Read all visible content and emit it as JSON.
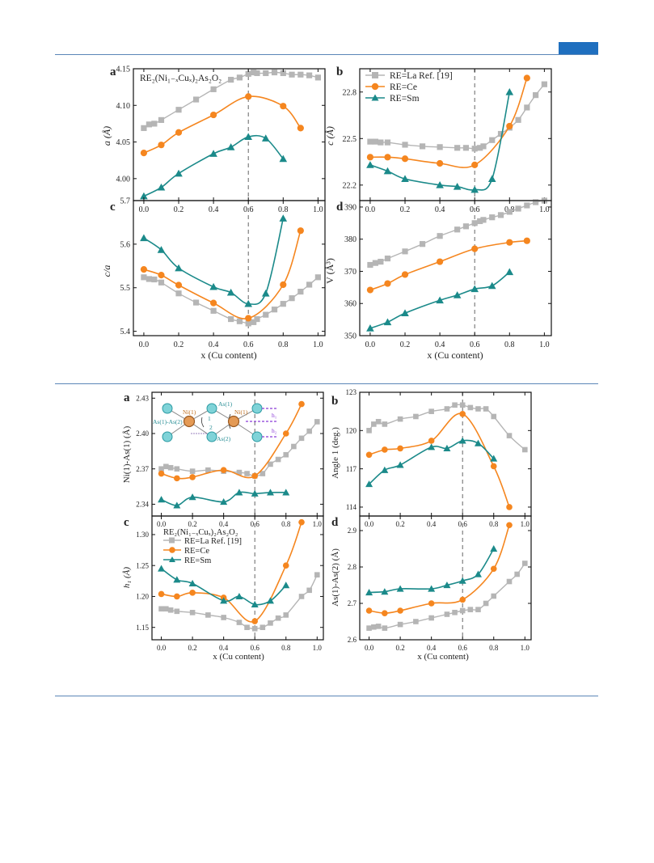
{
  "colors": {
    "la": "#b5b5b5",
    "ce": "#f5861f",
    "sm": "#1b8a8a",
    "rule": "#5b86b8",
    "tab": "#1f6fbf",
    "dash": "#666666"
  },
  "figure1": {
    "xlabel": "x (Cu content)",
    "panels": {
      "a": {
        "letter": "a",
        "title": "RE₂(Ni₁₋ₓCuₓ)₂As₂O₂",
        "ylabel": "a (Å)"
      },
      "b": {
        "letter": "b",
        "ylabel": "c (Å)"
      },
      "c": {
        "letter": "c",
        "ylabel": "c/a"
      },
      "d": {
        "letter": "d",
        "ylabel": "V (Å³)"
      }
    },
    "legend": [
      "RE=La  Ref. [19]",
      "RE=Ce",
      "RE=Sm"
    ]
  },
  "figure2": {
    "xlabel": "x (Cu content)",
    "panels": {
      "a": {
        "letter": "a",
        "ylabel": "Ni(1)-As(1) (Å)"
      },
      "b": {
        "letter": "b",
        "ylabel": "Angle 1 (deg.)"
      },
      "c": {
        "letter": "c",
        "title": "RE₂(Ni₁₋ₓCuₓ)₂As₂O₂",
        "ylabel": "h₁ (Å)"
      },
      "d": {
        "letter": "d",
        "ylabel": "As(1)-As(2) (Å)"
      }
    },
    "legend": [
      "RE=La  Ref. [19]",
      "RE=Ce",
      "RE=Sm"
    ],
    "inset": {
      "ni1_left": "Ni(1)",
      "as1_top": "As(1)",
      "as1as2": "As(1)-As(2)",
      "label1": "1",
      "label2": "2",
      "ni1_right": "Ni(1)",
      "as2": "As(2)",
      "h1": "h₁",
      "h2": "h₂"
    }
  },
  "chart_data": [
    {
      "id": "fig1a",
      "type": "scatter",
      "xlabel": "x (Cu content)",
      "ylabel": "a (Å)",
      "xlim": [
        -0.06,
        1.04
      ],
      "ylim": [
        3.97,
        4.15
      ],
      "xticks": [
        "0.0",
        "0.2",
        "0.4",
        "0.6",
        "0.8",
        "1.0"
      ],
      "yticks": [
        "4.00",
        "4.05",
        "4.10",
        "4.15"
      ],
      "vline": 0.6,
      "series": [
        {
          "name": "RE=La  Ref. [19]",
          "x": [
            0,
            0.03,
            0.06,
            0.1,
            0.2,
            0.3,
            0.4,
            0.5,
            0.55,
            0.6,
            0.63,
            0.65,
            0.7,
            0.75,
            0.8,
            0.85,
            0.9,
            0.95,
            1.0
          ],
          "y": [
            4.069,
            4.074,
            4.075,
            4.08,
            4.094,
            4.108,
            4.122,
            4.135,
            4.138,
            4.143,
            4.145,
            4.144,
            4.144,
            4.145,
            4.144,
            4.142,
            4.142,
            4.141,
            4.138
          ]
        },
        {
          "name": "RE=Ce",
          "x": [
            0,
            0.1,
            0.2,
            0.4,
            0.6,
            0.8,
            0.9
          ],
          "y": [
            4.035,
            4.046,
            4.063,
            4.087,
            4.112,
            4.099,
            4.069
          ]
        },
        {
          "name": "RE=Sm",
          "x": [
            0,
            0.1,
            0.2,
            0.4,
            0.5,
            0.6,
            0.7,
            0.8
          ],
          "y": [
            3.976,
            3.988,
            4.007,
            4.034,
            4.043,
            4.057,
            4.055,
            4.027
          ]
        }
      ]
    },
    {
      "id": "fig1b",
      "type": "scatter",
      "xlabel": "x (Cu content)",
      "ylabel": "c (Å)",
      "xlim": [
        -0.06,
        1.04
      ],
      "ylim": [
        22.1,
        22.95
      ],
      "xticks": [
        "0.0",
        "0.2",
        "0.4",
        "0.6",
        "0.8",
        "1.0"
      ],
      "yticks": [
        "22.2",
        "22.5",
        "22.8"
      ],
      "vline": 0.6,
      "series": [
        {
          "name": "RE=La  Ref. [19]",
          "x": [
            0,
            0.03,
            0.06,
            0.1,
            0.2,
            0.3,
            0.4,
            0.5,
            0.55,
            0.6,
            0.63,
            0.65,
            0.7,
            0.75,
            0.8,
            0.85,
            0.9,
            0.95,
            1.0
          ],
          "y": [
            22.48,
            22.48,
            22.475,
            22.475,
            22.46,
            22.45,
            22.445,
            22.44,
            22.44,
            22.435,
            22.44,
            22.45,
            22.49,
            22.53,
            22.57,
            22.62,
            22.7,
            22.78,
            22.85
          ]
        },
        {
          "name": "RE=Ce",
          "x": [
            0,
            0.1,
            0.2,
            0.4,
            0.6,
            0.8,
            0.9
          ],
          "y": [
            22.38,
            22.38,
            22.37,
            22.34,
            22.33,
            22.58,
            22.89
          ]
        },
        {
          "name": "RE=Sm",
          "x": [
            0,
            0.1,
            0.2,
            0.4,
            0.5,
            0.6,
            0.7,
            0.8
          ],
          "y": [
            22.33,
            22.29,
            22.24,
            22.2,
            22.19,
            22.17,
            22.24,
            22.8
          ]
        }
      ]
    },
    {
      "id": "fig1c",
      "type": "scatter",
      "xlabel": "x (Cu content)",
      "ylabel": "c/a",
      "xlim": [
        -0.06,
        1.04
      ],
      "ylim": [
        5.39,
        5.7
      ],
      "xticks": [
        "0.0",
        "0.2",
        "0.4",
        "0.6",
        "0.8",
        "1.0"
      ],
      "yticks": [
        "5.4",
        "5.5",
        "5.6",
        "5.7"
      ],
      "vline": 0.6,
      "series": [
        {
          "name": "RE=La  Ref. [19]",
          "x": [
            0,
            0.03,
            0.06,
            0.1,
            0.2,
            0.3,
            0.4,
            0.5,
            0.55,
            0.6,
            0.63,
            0.65,
            0.7,
            0.75,
            0.8,
            0.85,
            0.9,
            0.95,
            1.0
          ],
          "y": [
            5.524,
            5.52,
            5.519,
            5.512,
            5.487,
            5.466,
            5.447,
            5.428,
            5.423,
            5.418,
            5.421,
            5.428,
            5.438,
            5.45,
            5.463,
            5.476,
            5.491,
            5.507,
            5.524
          ]
        },
        {
          "name": "RE=Ce",
          "x": [
            0,
            0.1,
            0.2,
            0.4,
            0.6,
            0.8,
            0.9
          ],
          "y": [
            5.542,
            5.529,
            5.506,
            5.465,
            5.43,
            5.507,
            5.631
          ]
        },
        {
          "name": "RE=Sm",
          "x": [
            0,
            0.1,
            0.2,
            0.4,
            0.5,
            0.6,
            0.7,
            0.8
          ],
          "y": [
            5.614,
            5.587,
            5.545,
            5.502,
            5.489,
            5.463,
            5.487,
            5.659
          ]
        }
      ]
    },
    {
      "id": "fig1d",
      "type": "scatter",
      "xlabel": "x (Cu content)",
      "ylabel": "V (Å³)",
      "xlim": [
        -0.06,
        1.04
      ],
      "ylim": [
        350,
        392
      ],
      "xticks": [
        "0.0",
        "0.2",
        "0.4",
        "0.6",
        "0.8",
        "1.0"
      ],
      "yticks": [
        "350",
        "360",
        "370",
        "380",
        "390"
      ],
      "vline": 0.6,
      "series": [
        {
          "name": "RE=La  Ref. [19]",
          "x": [
            0,
            0.03,
            0.06,
            0.1,
            0.2,
            0.3,
            0.4,
            0.5,
            0.55,
            0.6,
            0.63,
            0.65,
            0.7,
            0.75,
            0.8,
            0.85,
            0.9,
            0.95,
            1.0
          ],
          "y": [
            372,
            372.6,
            373,
            374,
            376.2,
            378.5,
            381,
            383,
            384,
            385,
            385.6,
            386,
            386.8,
            387.5,
            388.5,
            389.5,
            390.5,
            391.5,
            392
          ]
        },
        {
          "name": "RE=Ce",
          "x": [
            0,
            0.1,
            0.2,
            0.4,
            0.6,
            0.8,
            0.9
          ],
          "y": [
            364.2,
            366.2,
            369,
            373,
            377,
            379,
            379.5
          ]
        },
        {
          "name": "RE=Sm",
          "x": [
            0,
            0.1,
            0.2,
            0.4,
            0.5,
            0.6,
            0.7,
            0.8
          ],
          "y": [
            352.3,
            354.2,
            357,
            361,
            362.6,
            364.5,
            365.5,
            369.8
          ]
        }
      ]
    },
    {
      "id": "fig2a",
      "type": "scatter",
      "xlabel": "x (Cu content)",
      "ylabel": "Ni(1)-As(1) (Å)",
      "xlim": [
        -0.06,
        1.04
      ],
      "ylim": [
        2.33,
        2.435
      ],
      "xticks": [
        "0.0",
        "0.2",
        "0.4",
        "0.6",
        "0.8",
        "1.0"
      ],
      "yticks": [
        "2.34",
        "2.37",
        "2.40",
        "2.43"
      ],
      "vline": 0.6,
      "series": [
        {
          "name": "RE=La  Ref. [19]",
          "x": [
            0,
            0.03,
            0.06,
            0.1,
            0.2,
            0.3,
            0.4,
            0.5,
            0.55,
            0.6,
            0.65,
            0.7,
            0.75,
            0.8,
            0.85,
            0.9,
            0.95,
            1.0
          ],
          "y": [
            2.37,
            2.372,
            2.371,
            2.37,
            2.368,
            2.369,
            2.368,
            2.367,
            2.366,
            2.364,
            2.366,
            2.374,
            2.378,
            2.382,
            2.389,
            2.396,
            2.402,
            2.41
          ]
        },
        {
          "name": "RE=Ce",
          "x": [
            0,
            0.1,
            0.2,
            0.4,
            0.6,
            0.8,
            0.9
          ],
          "y": [
            2.366,
            2.362,
            2.363,
            2.369,
            2.364,
            2.4,
            2.425
          ]
        },
        {
          "name": "RE=Sm",
          "x": [
            0,
            0.1,
            0.2,
            0.4,
            0.5,
            0.6,
            0.7,
            0.8
          ],
          "y": [
            2.344,
            2.339,
            2.346,
            2.342,
            2.35,
            2.349,
            2.35,
            2.35
          ]
        }
      ]
    },
    {
      "id": "fig2b",
      "type": "scatter",
      "xlabel": "x (Cu content)",
      "ylabel": "Angle 1 (deg.)",
      "xlim": [
        -0.06,
        1.04
      ],
      "ylim": [
        113.3,
        123
      ],
      "xticks": [
        "0.0",
        "0.2",
        "0.4",
        "0.6",
        "0.8",
        "1.0"
      ],
      "yticks": [
        "114",
        "117",
        "120",
        "123"
      ],
      "vline": 0.6,
      "series": [
        {
          "name": "RE=La  Ref. [19]",
          "x": [
            0,
            0.03,
            0.06,
            0.1,
            0.2,
            0.3,
            0.4,
            0.5,
            0.55,
            0.6,
            0.65,
            0.7,
            0.75,
            0.8,
            0.9,
            1.0
          ],
          "y": [
            120,
            120.5,
            120.7,
            120.5,
            120.9,
            121.1,
            121.5,
            121.7,
            122,
            122,
            121.8,
            121.7,
            121.7,
            121.1,
            119.6,
            118.5
          ]
        },
        {
          "name": "RE=Ce",
          "x": [
            0,
            0.1,
            0.2,
            0.4,
            0.6,
            0.8,
            0.9
          ],
          "y": [
            118.1,
            118.5,
            118.6,
            119.2,
            121.3,
            117.2,
            114
          ]
        },
        {
          "name": "RE=Sm",
          "x": [
            0,
            0.1,
            0.2,
            0.4,
            0.5,
            0.6,
            0.7,
            0.8
          ],
          "y": [
            115.8,
            116.9,
            117.3,
            118.7,
            118.6,
            119.2,
            119,
            117.8
          ]
        }
      ]
    },
    {
      "id": "fig2c",
      "type": "scatter",
      "xlabel": "x (Cu content)",
      "ylabel": "h₁ (Å)",
      "xlim": [
        -0.06,
        1.04
      ],
      "ylim": [
        1.13,
        1.33
      ],
      "xticks": [
        "0.0",
        "0.2",
        "0.4",
        "0.6",
        "0.8",
        "1.0"
      ],
      "yticks": [
        "1.15",
        "1.20",
        "1.25",
        "1.30"
      ],
      "vline": 0.6,
      "series": [
        {
          "name": "RE=La  Ref. [19]",
          "x": [
            0,
            0.03,
            0.06,
            0.1,
            0.2,
            0.3,
            0.4,
            0.5,
            0.55,
            0.6,
            0.65,
            0.7,
            0.75,
            0.8,
            0.9,
            0.95,
            1.0
          ],
          "y": [
            1.18,
            1.18,
            1.178,
            1.176,
            1.174,
            1.17,
            1.166,
            1.158,
            1.15,
            1.148,
            1.15,
            1.157,
            1.165,
            1.17,
            1.2,
            1.21,
            1.235
          ]
        },
        {
          "name": "RE=Ce",
          "x": [
            0,
            0.1,
            0.2,
            0.4,
            0.6,
            0.8,
            0.9
          ],
          "y": [
            1.204,
            1.2,
            1.206,
            1.198,
            1.16,
            1.25,
            1.32
          ]
        },
        {
          "name": "RE=Sm",
          "x": [
            0,
            0.1,
            0.2,
            0.4,
            0.5,
            0.6,
            0.7,
            0.8
          ],
          "y": [
            1.245,
            1.227,
            1.221,
            1.193,
            1.2,
            1.187,
            1.193,
            1.218
          ]
        }
      ]
    },
    {
      "id": "fig2d",
      "type": "scatter",
      "xlabel": "x (Cu content)",
      "ylabel": "As(1)-As(2) (Å)",
      "xlim": [
        -0.06,
        1.04
      ],
      "ylim": [
        2.6,
        2.94
      ],
      "xticks": [
        "0.0",
        "0.2",
        "0.4",
        "0.6",
        "0.8",
        "1.0"
      ],
      "yticks": [
        "2.6",
        "2.7",
        "2.8",
        "2.9"
      ],
      "vline": 0.6,
      "series": [
        {
          "name": "RE=La  Ref. [19]",
          "x": [
            0,
            0.03,
            0.06,
            0.1,
            0.2,
            0.3,
            0.4,
            0.5,
            0.55,
            0.6,
            0.65,
            0.7,
            0.75,
            0.8,
            0.9,
            0.95,
            1.0
          ],
          "y": [
            2.632,
            2.635,
            2.637,
            2.632,
            2.642,
            2.65,
            2.66,
            2.67,
            2.675,
            2.68,
            2.683,
            2.683,
            2.7,
            2.72,
            2.76,
            2.78,
            2.81
          ]
        },
        {
          "name": "RE=Ce",
          "x": [
            0,
            0.1,
            0.2,
            0.4,
            0.6,
            0.8,
            0.9
          ],
          "y": [
            2.68,
            2.673,
            2.68,
            2.7,
            2.71,
            2.795,
            2.915
          ]
        },
        {
          "name": "RE=Sm",
          "x": [
            0,
            0.1,
            0.2,
            0.4,
            0.5,
            0.6,
            0.7,
            0.8
          ],
          "y": [
            2.73,
            2.732,
            2.74,
            2.74,
            2.75,
            2.762,
            2.78,
            2.85
          ]
        }
      ]
    }
  ]
}
